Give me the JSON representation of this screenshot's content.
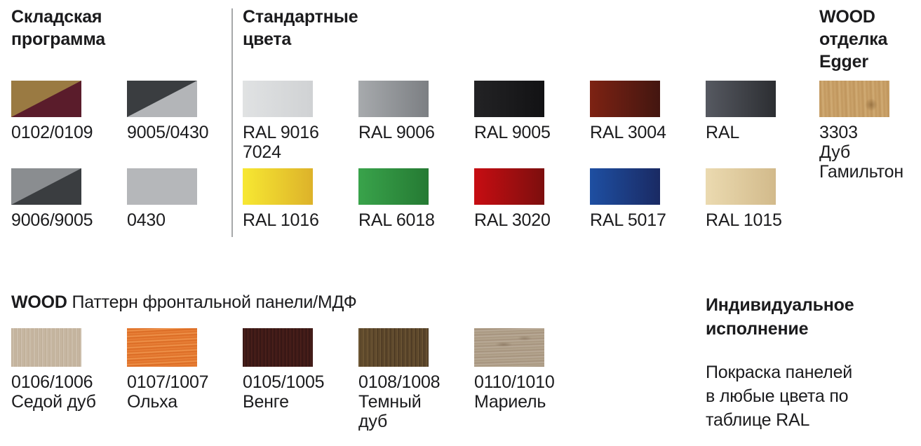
{
  "page": {
    "background": "#ffffff",
    "text_color": "#1b1b1d",
    "divider_color": "#a6a8aa"
  },
  "stock_program": {
    "title": "Складская\nпрограмма",
    "items": [
      {
        "code": "0102/0109",
        "swatch": {
          "type": "diagonal",
          "top_left": "#9a7a42",
          "bottom_right": "#5a1c2b"
        }
      },
      {
        "code": "9005/0430",
        "swatch": {
          "type": "diagonal",
          "top_left": "#3a3d40",
          "bottom_right": "#b3b5b8"
        }
      },
      {
        "code": "9006/9005",
        "swatch": {
          "type": "diagonal",
          "top_left": "#8a8d90",
          "bottom_right": "#3a3d40"
        }
      },
      {
        "code": "0430",
        "swatch": {
          "type": "solid",
          "color": "#b5b7ba"
        }
      }
    ]
  },
  "standard_colors": {
    "title": "Стандартные\nцвета",
    "row1": [
      {
        "code": "RAL 9016\n7024",
        "swatch": {
          "type": "gradient",
          "from": "#e0e2e3",
          "to": "#d0d2d4"
        }
      },
      {
        "code": "RAL 9006",
        "swatch": {
          "type": "gradient",
          "from": "#a7aaad",
          "to": "#7c7f83"
        }
      },
      {
        "code": "RAL 9005",
        "swatch": {
          "type": "gradient",
          "from": "#232325",
          "to": "#121214"
        }
      },
      {
        "code": "RAL 3004",
        "swatch": {
          "type": "gradient",
          "from": "#7d2213",
          "to": "#431610"
        }
      },
      {
        "code": "RAL",
        "swatch": {
          "type": "gradient",
          "from": "#565961",
          "to": "#2c2e32"
        }
      }
    ],
    "row2": [
      {
        "code": "RAL 1016",
        "swatch": {
          "type": "gradient",
          "from": "#f7e832",
          "to": "#ddb22a"
        }
      },
      {
        "code": "RAL 6018",
        "swatch": {
          "type": "gradient",
          "from": "#39a34b",
          "to": "#257a33"
        }
      },
      {
        "code": "RAL 3020",
        "swatch": {
          "type": "gradient",
          "from": "#c70d12",
          "to": "#7c0e0e"
        }
      },
      {
        "code": "RAL 5017",
        "swatch": {
          "type": "gradient",
          "from": "#1e4fa2",
          "to": "#1a2a63"
        }
      },
      {
        "code": "RAL 1015",
        "swatch": {
          "type": "gradient",
          "from": "#ebdab0",
          "to": "#d2ba8b"
        }
      }
    ]
  },
  "wood_egger": {
    "title": "WOOD\nотделка\nEgger",
    "item": {
      "code": "3303\nДуб\nГамильтон",
      "swatch": {
        "type": "wood",
        "texture": "oak-hamilton",
        "base_color": "#c79e64"
      }
    }
  },
  "wood_mdf": {
    "title_bold": "WOOD",
    "title_rest": "Паттерн фронтальной панели/МДФ",
    "items": [
      {
        "code": "0106/1006",
        "name": "Седой дуб",
        "swatch": {
          "type": "wood",
          "texture": "gray-oak",
          "base_color": "#c8b8a3"
        }
      },
      {
        "code": "0107/1007",
        "name": "Ольха",
        "swatch": {
          "type": "wood",
          "texture": "alder",
          "base_color": "#e57c31"
        }
      },
      {
        "code": "0105/1005",
        "name": "Венге",
        "swatch": {
          "type": "wood",
          "texture": "wenge",
          "base_color": "#3d1a18"
        }
      },
      {
        "code": "0108/1008",
        "name": "Темный\nдуб",
        "swatch": {
          "type": "wood",
          "texture": "dark-oak",
          "base_color": "#5c4629"
        }
      },
      {
        "code": "0110/1010",
        "name": "Мариель",
        "swatch": {
          "type": "wood",
          "texture": "mariel",
          "base_color": "#b0a18b"
        }
      }
    ]
  },
  "individual": {
    "title": "Индивидуальное\nисполнение",
    "body": "Покраска панелей\nв любые цвета по\nтаблице RAL"
  }
}
